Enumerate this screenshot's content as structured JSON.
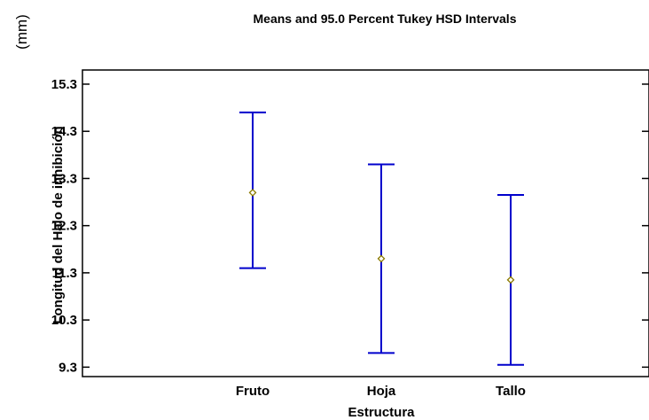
{
  "chart_data": {
    "type": "interval",
    "title": "Means and 95.0 Percent Tukey HSD Intervals",
    "xlabel": "Estructura",
    "ylabel": "Longitud del Halo de inhibición",
    "unit_label": "(mm)",
    "categories": [
      "Fruto",
      "Hoja",
      "Tallo"
    ],
    "means": [
      13.0,
      11.6,
      11.15
    ],
    "lower": [
      11.4,
      9.6,
      9.35
    ],
    "upper": [
      14.7,
      13.6,
      12.95
    ],
    "yticks": [
      "15.3",
      "14.3",
      "13.3",
      "12.3",
      "11.3",
      "10.3",
      "9.3"
    ],
    "ylim": [
      9.1,
      15.6
    ],
    "grid": false,
    "interval_color": "#0000cc",
    "marker_color": "#8b7a00"
  }
}
